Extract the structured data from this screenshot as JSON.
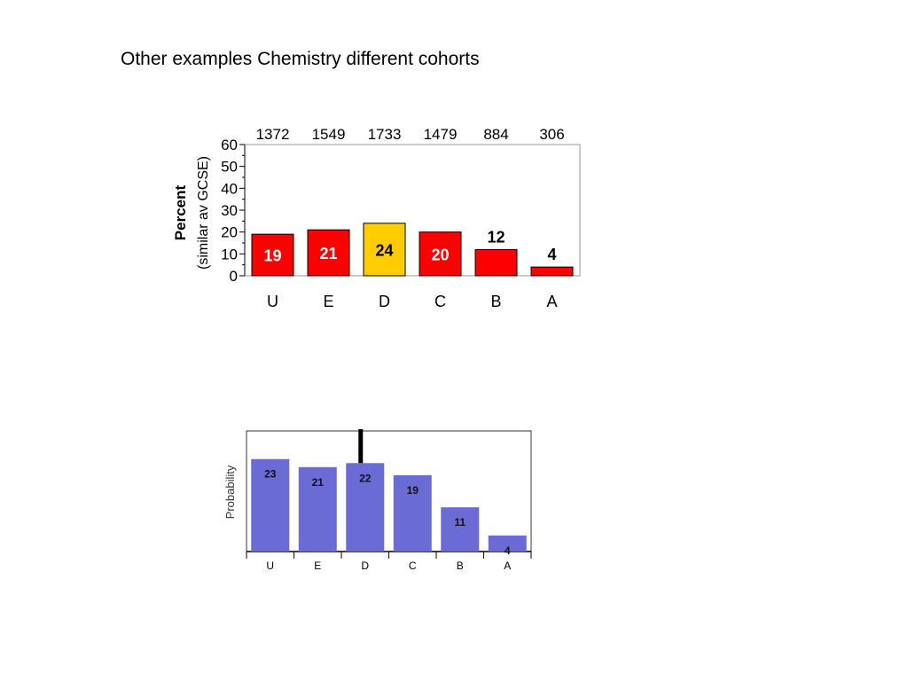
{
  "slide": {
    "title": "Other examples Chemistry different cohorts"
  },
  "chart_data": [
    {
      "type": "bar",
      "title": "",
      "categories": [
        "U",
        "E",
        "D",
        "C",
        "B",
        "A"
      ],
      "cohort_counts": [
        "1372",
        "1549",
        "1733",
        "1479",
        "884",
        "306"
      ],
      "values": [
        19,
        21,
        24,
        20,
        12,
        4
      ],
      "bar_colors": [
        "#ff0000",
        "#ff0000",
        "#ffcc00",
        "#ff0000",
        "#ff0000",
        "#ff0000"
      ],
      "ylabel": "Percent",
      "ylabel_sub": "(similar av GCSE)",
      "yticks": [
        "0",
        "10",
        "20",
        "30",
        "40",
        "50",
        "60"
      ],
      "ylim": [
        0,
        60
      ],
      "grid": false
    },
    {
      "type": "bar",
      "title": "",
      "categories": [
        "U",
        "E",
        "D",
        "C",
        "B",
        "A"
      ],
      "values": [
        23,
        21,
        22,
        19,
        11,
        4
      ],
      "bar_color": "#6b6bd6",
      "marker_category": "D",
      "ylabel": "Probability",
      "grid": false
    }
  ]
}
